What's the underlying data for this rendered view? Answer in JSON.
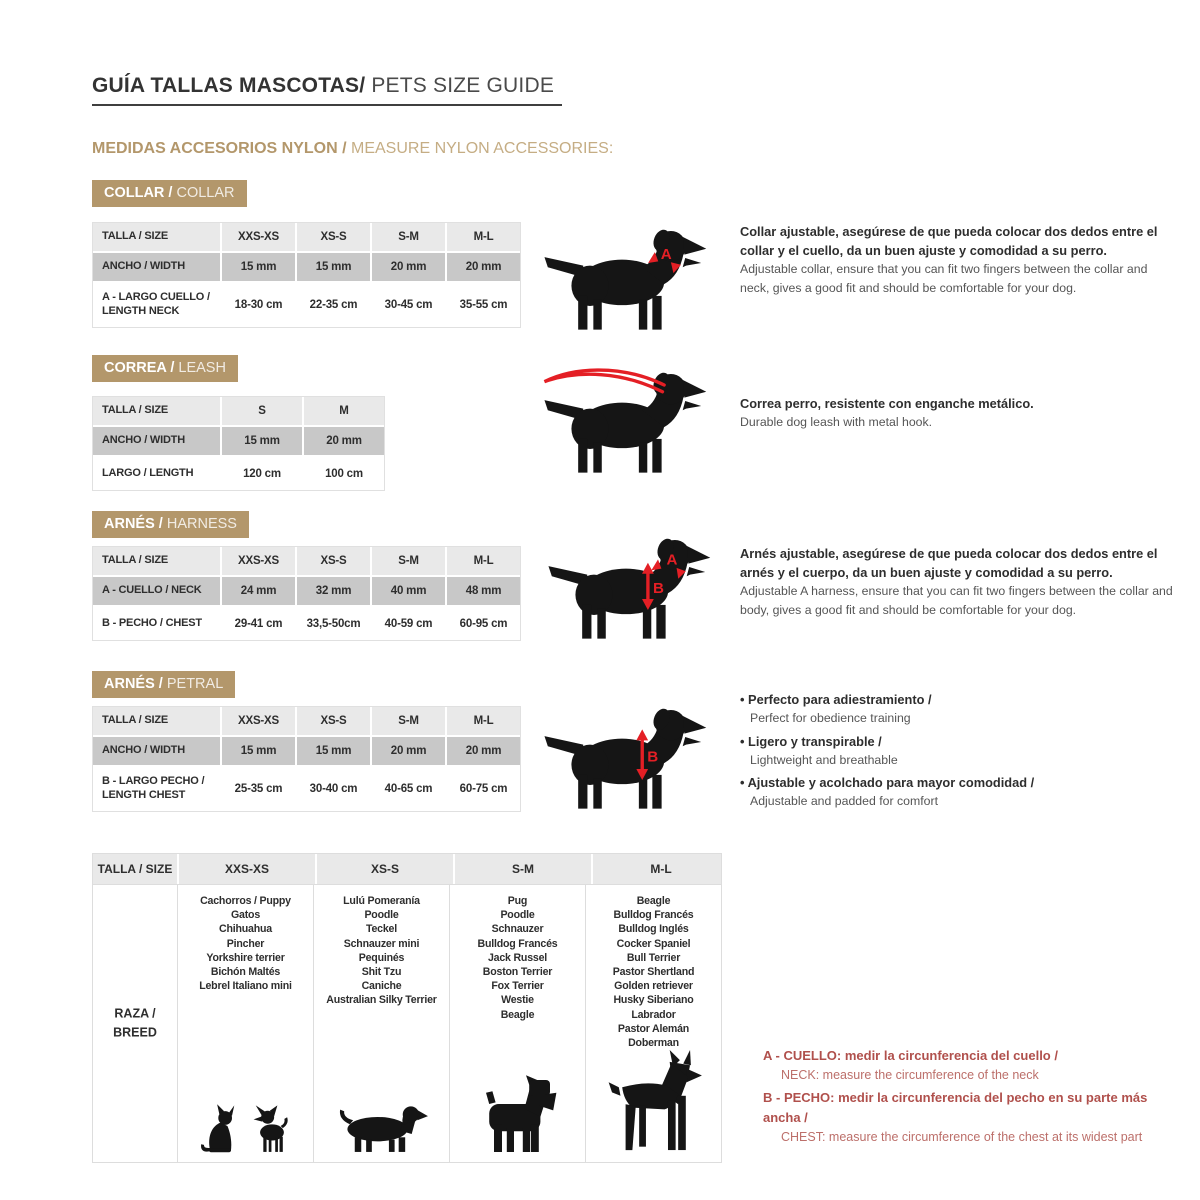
{
  "header": {
    "title_bold": "GUÍA TALLAS MASCOTAS/",
    "title_light": " PETS SIZE GUIDE",
    "subtitle_bold": "MEDIDAS ACCESORIOS NYLON /",
    "subtitle_light": " MEASURE NYLON ACCESSORIES:"
  },
  "colors": {
    "accent_tan": "#b3976b",
    "accent_tan_light": "#c5ad84",
    "table_gray_light": "#e9e9e9",
    "table_gray_mid": "#c8c8c8",
    "arrow_red": "#e41f25",
    "note_red": "#b0504c",
    "silhouette_black": "#151515"
  },
  "diagram": {
    "a": "A",
    "b": "B"
  },
  "collar": {
    "badge_bold": "COLLAR /",
    "badge_light": " COLLAR",
    "table": {
      "header": [
        "TALLA / SIZE",
        "XXS-XS",
        "XS-S",
        "S-M",
        "M-L"
      ],
      "rows": [
        {
          "label": "ANCHO / WIDTH",
          "values": [
            "15 mm",
            "15 mm",
            "20 mm",
            "20 mm"
          ]
        },
        {
          "label": "A - LARGO CUELLO / LENGTH NECK",
          "values": [
            "18-30 cm",
            "22-35 cm",
            "30-45 cm",
            "35-55 cm"
          ]
        }
      ]
    },
    "desc_es": "Collar ajustable, asegúrese de que pueda colocar dos dedos entre el collar y el cuello, da un buen ajuste y comodidad a su perro.",
    "desc_en": "Adjustable collar, ensure that you can fit two fingers between the collar and neck, gives a good fit and should be comfortable for your dog."
  },
  "leash": {
    "badge_bold": "CORREA /",
    "badge_light": " LEASH",
    "table": {
      "header": [
        "TALLA / SIZE",
        "S",
        "M"
      ],
      "rows": [
        {
          "label": "ANCHO / WIDTH",
          "values": [
            "15 mm",
            "20 mm"
          ]
        },
        {
          "label": "LARGO / LENGTH",
          "values": [
            "120 cm",
            "100 cm"
          ]
        }
      ]
    },
    "desc_es": "Correa perro, resistente con enganche metálico.",
    "desc_en": "Durable dog leash with metal hook."
  },
  "harness": {
    "badge_bold": "ARNÉS /",
    "badge_light": " HARNESS",
    "table": {
      "header": [
        "TALLA / SIZE",
        "XXS-XS",
        "XS-S",
        "S-M",
        "M-L"
      ],
      "rows": [
        {
          "label": "A - CUELLO / NECK",
          "values": [
            "24 mm",
            "32 mm",
            "40 mm",
            "48 mm"
          ]
        },
        {
          "label": "B - PECHO / CHEST",
          "values": [
            "29-41 cm",
            "33,5-50cm",
            "40-59 cm",
            "60-95 cm"
          ]
        }
      ]
    },
    "desc_es": "Arnés ajustable, asegúrese de que pueda colocar dos dedos entre el arnés y el cuerpo, da un buen ajuste y comodidad a su perro.",
    "desc_en": "Adjustable A harness, ensure that you can fit two fingers between the collar and body, gives a good fit and should be comfortable for your dog."
  },
  "petral": {
    "badge_bold": "ARNÉS /",
    "badge_light": " PETRAL",
    "table": {
      "header": [
        "TALLA / SIZE",
        "XXS-XS",
        "XS-S",
        "S-M",
        "M-L"
      ],
      "rows": [
        {
          "label": "ANCHO / WIDTH",
          "values": [
            "15 mm",
            "15 mm",
            "20 mm",
            "20 mm"
          ]
        },
        {
          "label": "B - LARGO PECHO / LENGTH CHEST",
          "values": [
            "25-35 cm",
            "30-40 cm",
            "40-65 cm",
            "60-75 cm"
          ]
        }
      ]
    },
    "bullets": [
      {
        "es": "Perfecto para adiestramiento /",
        "en": "Perfect for obedience training"
      },
      {
        "es": "Ligero y transpirable /",
        "en": "Lightweight and breathable"
      },
      {
        "es": "Ajustable y acolchado para mayor comodidad /",
        "en": "Adjustable and padded for comfort"
      }
    ]
  },
  "breeds": {
    "header": [
      "TALLA /  SIZE",
      "XXS-XS",
      "XS-S",
      "S-M",
      "M-L"
    ],
    "row_label_line1": "RAZA /",
    "row_label_line2": "BREED",
    "columns": [
      [
        "Cachorros / Puppy",
        "Gatos",
        "Chihuahua",
        "Pincher",
        "Yorkshire terrier",
        "Bichón Maltés",
        "Lebrel Italiano mini"
      ],
      [
        "Lulú Pomeranía",
        "Poodle",
        "Teckel",
        "Schnauzer mini",
        "Pequinés",
        "Shit Tzu",
        "Caniche",
        "Australian Silky Terrier"
      ],
      [
        "Pug",
        "Poodle",
        "Schnauzer",
        "Bulldog Francés",
        "Jack Russel",
        "Boston Terrier",
        "Fox Terrier",
        "Westie",
        "Beagle"
      ],
      [
        "Beagle",
        "Bulldog Francés",
        "Bulldog Inglés",
        "Cocker Spaniel",
        "Bull Terrier",
        "Pastor Shertland",
        "Golden retriever",
        "Husky Siberiano",
        "Labrador",
        "Pastor Alemán",
        "Doberman"
      ]
    ]
  },
  "notes": [
    {
      "bold": "A - CUELLO: medir la circunferencia del cuello /",
      "light": "NECK: measure the circumference of the neck"
    },
    {
      "bold": "B - PECHO: medir la circunferencia del pecho en su parte más ancha /",
      "light": "CHEST: measure the circumference of the chest at its widest part"
    }
  ]
}
